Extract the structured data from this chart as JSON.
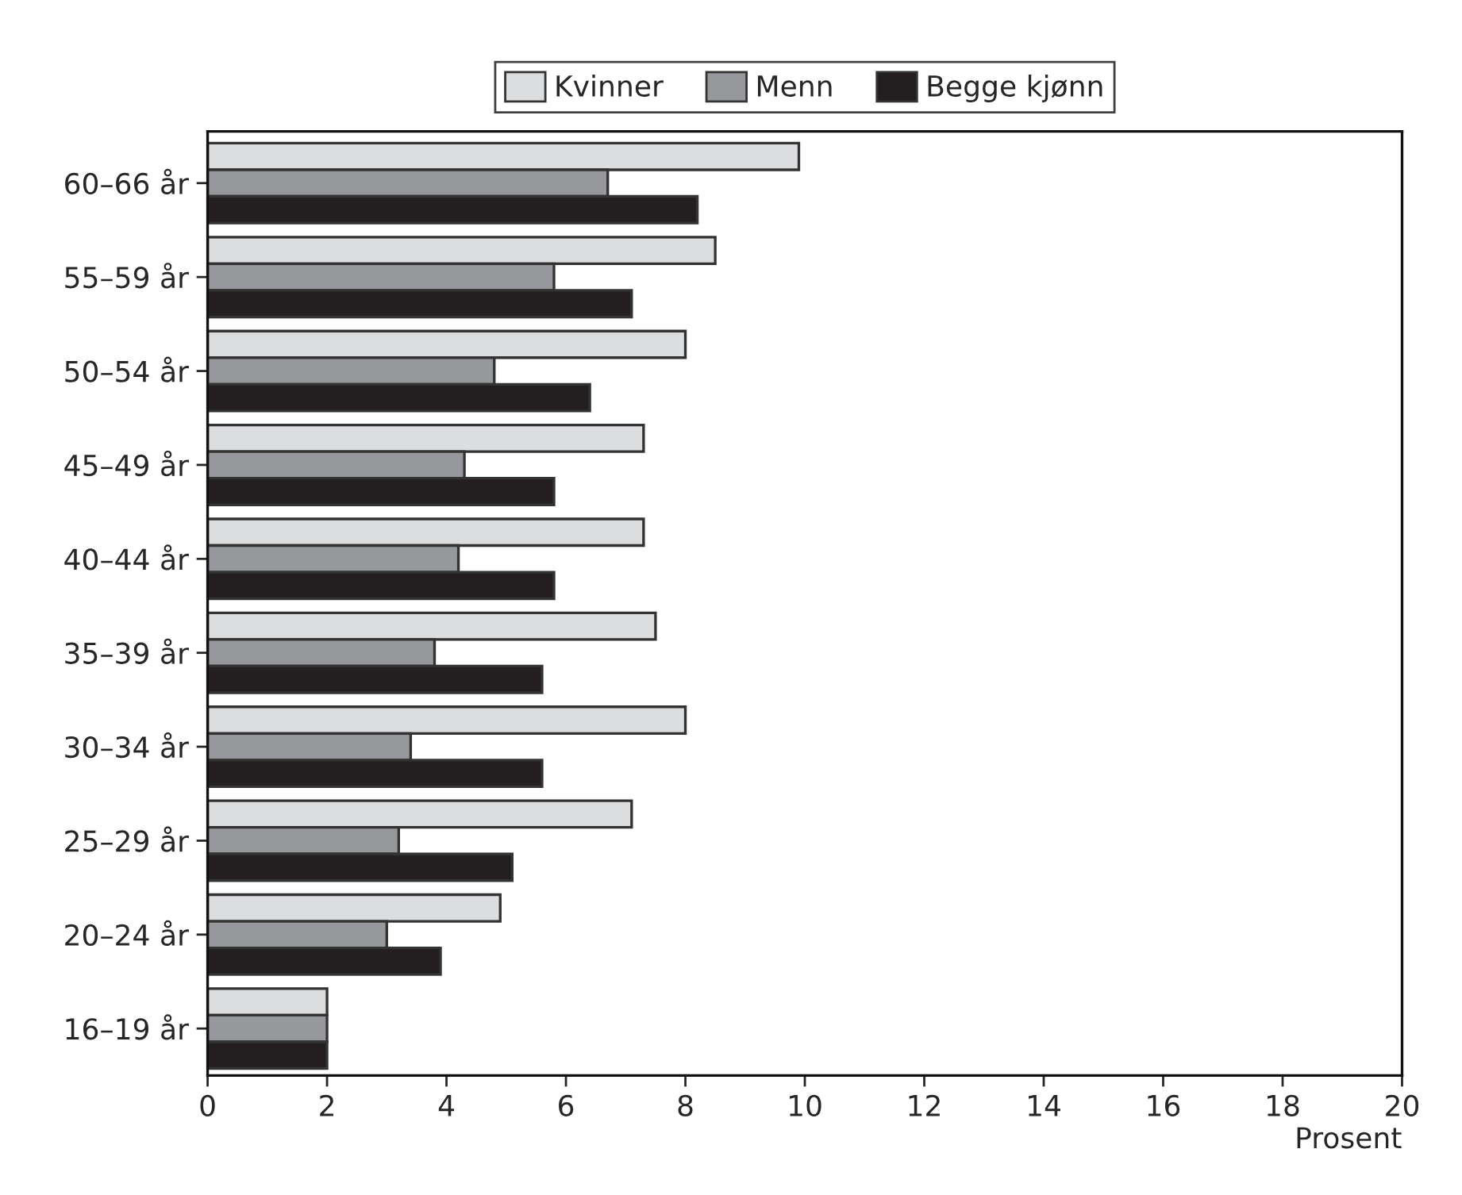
{
  "chart_data": {
    "type": "bar",
    "orientation": "horizontal",
    "xlabel": "Prosent",
    "categories": [
      "60–66 år",
      "55–59 år",
      "50–54 år",
      "45–49 år",
      "40–44 år",
      "35–39 år",
      "30–34 år",
      "25–29 år",
      "20–24 år",
      "16–19 år"
    ],
    "series": [
      {
        "name": "Kvinner",
        "color": "#dcdddf",
        "values": [
          9.9,
          8.5,
          8.0,
          7.3,
          7.3,
          7.5,
          8.0,
          7.1,
          4.9,
          2.0
        ]
      },
      {
        "name": "Menn",
        "color": "#97989b",
        "values": [
          6.7,
          5.8,
          4.8,
          4.3,
          4.2,
          3.8,
          3.4,
          3.2,
          3.0,
          2.0
        ]
      },
      {
        "name": "Begge kjønn",
        "color": "#231f20",
        "values": [
          8.2,
          7.1,
          6.4,
          5.8,
          5.8,
          5.6,
          5.6,
          5.1,
          3.9,
          2.0
        ]
      }
    ],
    "xlim": [
      0,
      20
    ],
    "xticks": [
      0,
      2,
      4,
      6,
      8,
      10,
      12,
      14,
      16,
      18,
      20
    ],
    "grid": false,
    "legend": "top"
  }
}
